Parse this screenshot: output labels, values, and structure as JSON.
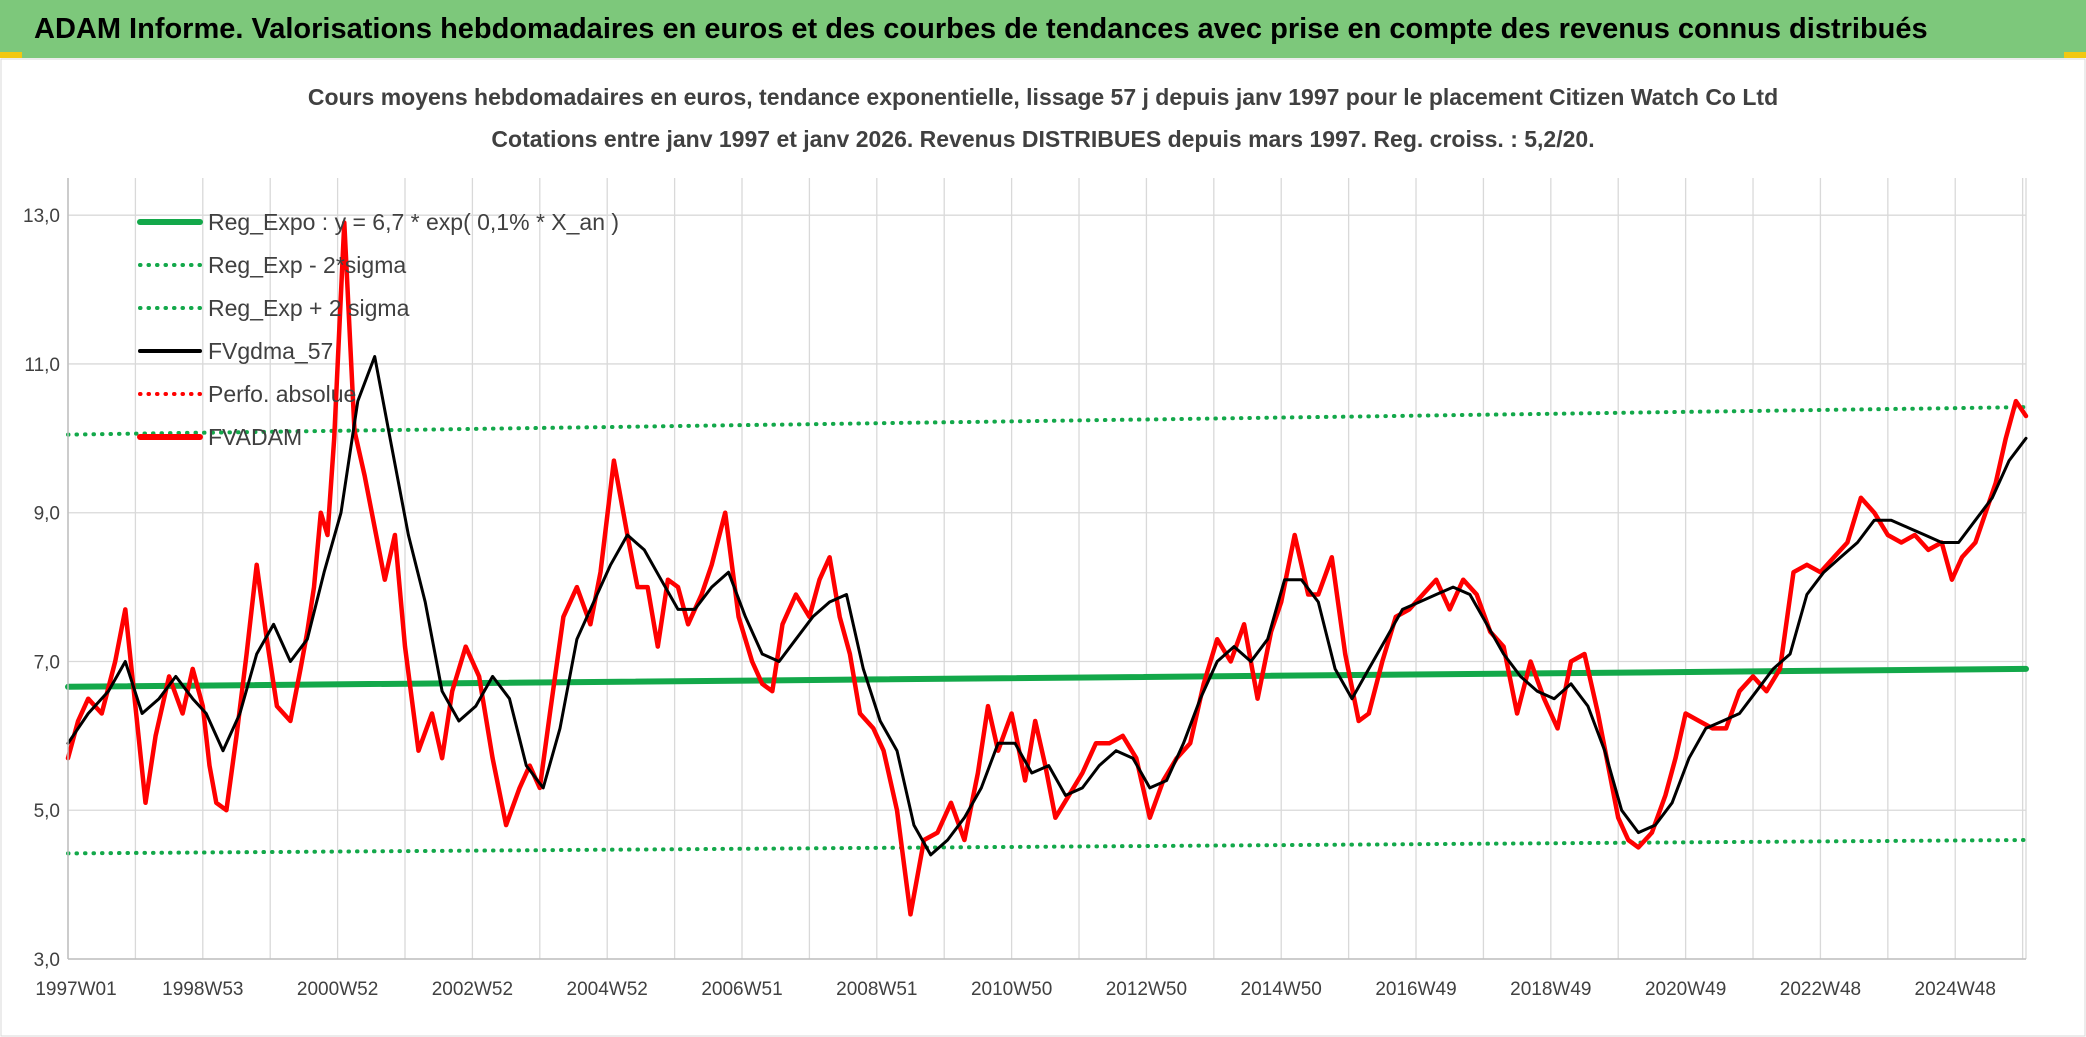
{
  "banner": {
    "text": "ADAM Informe. Valorisations hebdomadaires en euros et des courbes de tendances avec prise en compte des revenus connus distribués"
  },
  "colors": {
    "banner_bg": "#7dc87b",
    "reg_expo": "#13a84a",
    "fvgdma": "#000000",
    "fvadam": "#ff0000",
    "perfo": "#ff0000",
    "grid": "#d9d9d9",
    "text": "#404040",
    "accent": "#f2c811"
  },
  "chart_data": {
    "type": "line",
    "title": [
      "Cours moyens hebdomadaires en euros, tendance exponentielle, lissage 57 j depuis janv 1997 pour le placement Citizen Watch Co Ltd",
      "Cotations entre janv 1997 et janv 2026. Revenus DISTRIBUES depuis mars 1997. Reg. croiss. : 5,2/20."
    ],
    "xlabel": "",
    "ylabel": "",
    "ylim": [
      3.0,
      13.5
    ],
    "xlim": [
      1997.0,
      2026.05
    ],
    "yticks": [
      3.0,
      5.0,
      7.0,
      9.0,
      11.0,
      13.0
    ],
    "ytick_labels": [
      "3,0",
      "5,0",
      "7,0",
      "9,0",
      "11,0",
      "13,0"
    ],
    "xticks": [
      1997.0,
      1999.0,
      2001.0,
      2003.0,
      2005.0,
      2007.0,
      2009.0,
      2011.0,
      2013.0,
      2015.0,
      2017.0,
      2019.0,
      2021.0,
      2023.0,
      2025.0
    ],
    "xtick_labels": [
      "1997W01",
      "1998W53",
      "2000W52",
      "2002W52",
      "2004W52",
      "2006W51",
      "2008W51",
      "2010W50",
      "2012W50",
      "2014W50",
      "2016W49",
      "2018W49",
      "2020W49",
      "2022W48",
      "2024W48"
    ],
    "grid": true,
    "legend_position": "top-left",
    "legend": [
      {
        "label": "Reg_Expo : y = 6,7 * exp( 0,1% *  X_an )",
        "style": "solid-thick",
        "color": "#13a84a"
      },
      {
        "label": "Reg_Exp - 2*sigma",
        "style": "dotted",
        "color": "#13a84a"
      },
      {
        "label": "Reg_Exp + 2 sigma",
        "style": "dotted",
        "color": "#13a84a"
      },
      {
        "label": "FVgdma_57",
        "style": "solid",
        "color": "#000000"
      },
      {
        "label": "Perfo. absolue",
        "style": "dotted",
        "color": "#ff0000"
      },
      {
        "label": "FVADAM",
        "style": "solid-thick",
        "color": "#ff0000"
      }
    ],
    "reg_expo": {
      "x": [
        1997.0,
        2026.05
      ],
      "y": [
        6.66,
        6.9
      ]
    },
    "reg_minus_2sigma": {
      "x": [
        1997.0,
        2026.05
      ],
      "y": [
        4.42,
        4.6
      ]
    },
    "reg_plus_2sigma": {
      "x": [
        1997.0,
        2026.05
      ],
      "y": [
        10.05,
        10.42
      ]
    },
    "fvadam": {
      "x": [
        1997.0,
        1997.15,
        1997.3,
        1997.5,
        1997.7,
        1997.85,
        1998.0,
        1998.15,
        1998.3,
        1998.5,
        1998.7,
        1998.85,
        1999.0,
        1999.1,
        1999.2,
        1999.35,
        1999.5,
        1999.65,
        1999.8,
        1999.95,
        2000.1,
        2000.3,
        2000.45,
        2000.55,
        2000.65,
        2000.75,
        2000.85,
        2000.95,
        2001.1,
        2001.25,
        2001.4,
        2001.55,
        2001.7,
        2001.85,
        2002.0,
        2002.2,
        2002.4,
        2002.55,
        2002.7,
        2002.9,
        2003.1,
        2003.3,
        2003.5,
        2003.7,
        2003.85,
        2004.0,
        2004.15,
        2004.35,
        2004.55,
        2004.75,
        2004.9,
        2005.1,
        2005.3,
        2005.45,
        2005.6,
        2005.75,
        2005.9,
        2006.05,
        2006.2,
        2006.4,
        2006.55,
        2006.75,
        2006.95,
        2007.15,
        2007.3,
        2007.45,
        2007.6,
        2007.8,
        2008.0,
        2008.15,
        2008.3,
        2008.45,
        2008.6,
        2008.75,
        2008.95,
        2009.1,
        2009.3,
        2009.5,
        2009.7,
        2009.9,
        2010.1,
        2010.3,
        2010.5,
        2010.65,
        2010.8,
        2011.0,
        2011.2,
        2011.35,
        2011.5,
        2011.65,
        2011.85,
        2012.05,
        2012.25,
        2012.45,
        2012.65,
        2012.85,
        2013.05,
        2013.25,
        2013.45,
        2013.65,
        2013.85,
        2014.05,
        2014.25,
        2014.45,
        2014.65,
        2014.85,
        2015.0,
        2015.2,
        2015.4,
        2015.55,
        2015.75,
        2015.95,
        2016.15,
        2016.3,
        2016.5,
        2016.7,
        2016.9,
        2017.1,
        2017.3,
        2017.5,
        2017.7,
        2017.9,
        2018.1,
        2018.3,
        2018.5,
        2018.7,
        2018.9,
        2019.1,
        2019.3,
        2019.5,
        2019.7,
        2019.85,
        2020.0,
        2020.15,
        2020.3,
        2020.5,
        2020.7,
        2020.85,
        2021.0,
        2021.2,
        2021.4,
        2021.6,
        2021.8,
        2022.0,
        2022.2,
        2022.4,
        2022.6,
        2022.8,
        2023.0,
        2023.2,
        2023.4,
        2023.6,
        2023.8,
        2024.0,
        2024.2,
        2024.4,
        2024.6,
        2024.8,
        2024.95,
        2025.1,
        2025.3,
        2025.45,
        2025.6,
        2025.75,
        2025.9,
        2026.05
      ],
      "y": [
        5.7,
        6.2,
        6.5,
        6.3,
        7.0,
        7.7,
        6.4,
        5.1,
        6.0,
        6.8,
        6.3,
        6.9,
        6.4,
        5.6,
        5.1,
        5.0,
        6.0,
        7.1,
        8.3,
        7.3,
        6.4,
        6.2,
        6.9,
        7.4,
        8.0,
        9.0,
        8.7,
        10.0,
        12.9,
        10.1,
        9.5,
        8.8,
        8.1,
        8.7,
        7.2,
        5.8,
        6.3,
        5.7,
        6.6,
        7.2,
        6.8,
        5.7,
        4.8,
        5.3,
        5.6,
        5.3,
        6.3,
        7.6,
        8.0,
        7.5,
        8.2,
        9.7,
        8.7,
        8.0,
        8.0,
        7.2,
        8.1,
        8.0,
        7.5,
        7.9,
        8.3,
        9.0,
        7.6,
        7.0,
        6.7,
        6.6,
        7.5,
        7.9,
        7.6,
        8.1,
        8.4,
        7.6,
        7.1,
        6.3,
        6.1,
        5.8,
        5.0,
        3.6,
        4.6,
        4.7,
        5.1,
        4.6,
        5.5,
        6.4,
        5.8,
        6.3,
        5.4,
        6.2,
        5.6,
        4.9,
        5.2,
        5.5,
        5.9,
        5.9,
        6.0,
        5.7,
        4.9,
        5.4,
        5.7,
        5.9,
        6.7,
        7.3,
        7.0,
        7.5,
        6.5,
        7.4,
        7.8,
        8.7,
        7.9,
        7.9,
        8.4,
        7.1,
        6.2,
        6.3,
        7.0,
        7.6,
        7.7,
        7.9,
        8.1,
        7.7,
        8.1,
        7.9,
        7.4,
        7.2,
        6.3,
        7.0,
        6.5,
        6.1,
        7.0,
        7.1,
        6.3,
        5.6,
        4.9,
        4.6,
        4.5,
        4.7,
        5.2,
        5.7,
        6.3,
        6.2,
        6.1,
        6.1,
        6.6,
        6.8,
        6.6,
        6.9,
        8.2,
        8.3,
        8.2,
        8.4,
        8.6,
        9.2,
        9.0,
        8.7,
        8.6,
        8.7,
        8.5,
        8.6,
        8.1,
        8.4,
        8.6,
        9.0,
        9.4,
        10.0,
        10.5,
        10.3
      ]
    },
    "fvgdma_57": {
      "x": [
        1997.0,
        1997.3,
        1997.6,
        1997.85,
        1998.1,
        1998.35,
        1998.6,
        1998.85,
        1999.05,
        1999.3,
        1999.55,
        1999.8,
        2000.05,
        2000.3,
        2000.55,
        2000.8,
        2001.05,
        2001.3,
        2001.55,
        2001.8,
        2002.05,
        2002.3,
        2002.55,
        2002.8,
        2003.05,
        2003.3,
        2003.55,
        2003.8,
        2004.05,
        2004.3,
        2004.55,
        2004.8,
        2005.05,
        2005.3,
        2005.55,
        2005.8,
        2006.05,
        2006.3,
        2006.55,
        2006.8,
        2007.05,
        2007.3,
        2007.55,
        2007.8,
        2008.05,
        2008.3,
        2008.55,
        2008.8,
        2009.05,
        2009.3,
        2009.55,
        2009.8,
        2010.05,
        2010.3,
        2010.55,
        2010.8,
        2011.05,
        2011.3,
        2011.55,
        2011.8,
        2012.05,
        2012.3,
        2012.55,
        2012.8,
        2013.05,
        2013.3,
        2013.55,
        2013.8,
        2014.05,
        2014.3,
        2014.55,
        2014.8,
        2015.05,
        2015.3,
        2015.55,
        2015.8,
        2016.05,
        2016.3,
        2016.55,
        2016.8,
        2017.05,
        2017.3,
        2017.55,
        2017.8,
        2018.05,
        2018.3,
        2018.55,
        2018.8,
        2019.05,
        2019.3,
        2019.55,
        2019.8,
        2020.05,
        2020.3,
        2020.55,
        2020.8,
        2021.05,
        2021.3,
        2021.55,
        2021.8,
        2022.05,
        2022.3,
        2022.55,
        2022.8,
        2023.05,
        2023.3,
        2023.55,
        2023.8,
        2024.05,
        2024.3,
        2024.55,
        2024.8,
        2025.05,
        2025.3,
        2025.55,
        2025.8,
        2026.05
      ],
      "y": [
        5.9,
        6.3,
        6.6,
        7.0,
        6.3,
        6.5,
        6.8,
        6.5,
        6.3,
        5.8,
        6.3,
        7.1,
        7.5,
        7.0,
        7.3,
        8.2,
        9.0,
        10.5,
        11.1,
        9.9,
        8.7,
        7.8,
        6.6,
        6.2,
        6.4,
        6.8,
        6.5,
        5.6,
        5.3,
        6.1,
        7.3,
        7.8,
        8.3,
        8.7,
        8.5,
        8.1,
        7.7,
        7.7,
        8.0,
        8.2,
        7.6,
        7.1,
        7.0,
        7.3,
        7.6,
        7.8,
        7.9,
        6.9,
        6.2,
        5.8,
        4.8,
        4.4,
        4.6,
        4.9,
        5.3,
        5.9,
        5.9,
        5.5,
        5.6,
        5.2,
        5.3,
        5.6,
        5.8,
        5.7,
        5.3,
        5.4,
        5.9,
        6.5,
        7.0,
        7.2,
        7.0,
        7.3,
        8.1,
        8.1,
        7.8,
        6.9,
        6.5,
        6.9,
        7.3,
        7.7,
        7.8,
        7.9,
        8.0,
        7.9,
        7.5,
        7.1,
        6.8,
        6.6,
        6.5,
        6.7,
        6.4,
        5.8,
        5.0,
        4.7,
        4.8,
        5.1,
        5.7,
        6.1,
        6.2,
        6.3,
        6.6,
        6.9,
        7.1,
        7.9,
        8.2,
        8.4,
        8.6,
        8.9,
        8.9,
        8.8,
        8.7,
        8.6,
        8.6,
        8.9,
        9.2,
        9.7,
        10.0
      ]
    }
  }
}
